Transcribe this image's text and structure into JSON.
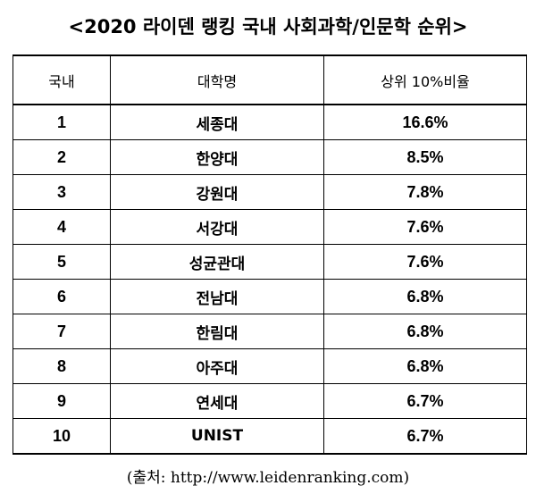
{
  "title": "<2020 라이덴 랭킹 국내 사회과학/인문학 순위>",
  "table": {
    "headers": [
      "국내",
      "대학명",
      "상위 10%비율"
    ],
    "rows": [
      {
        "rank": "1",
        "name": "세종대",
        "ratio": "16.6%"
      },
      {
        "rank": "2",
        "name": "한양대",
        "ratio": "8.5%"
      },
      {
        "rank": "3",
        "name": "강원대",
        "ratio": "7.8%"
      },
      {
        "rank": "4",
        "name": "서강대",
        "ratio": "7.6%"
      },
      {
        "rank": "5",
        "name": "성균관대",
        "ratio": "7.6%"
      },
      {
        "rank": "6",
        "name": "전남대",
        "ratio": "6.8%"
      },
      {
        "rank": "7",
        "name": "한림대",
        "ratio": "6.8%"
      },
      {
        "rank": "8",
        "name": "아주대",
        "ratio": "6.8%"
      },
      {
        "rank": "9",
        "name": "연세대",
        "ratio": "6.7%"
      },
      {
        "rank": "10",
        "name": "UNIST",
        "ratio": "6.7%"
      }
    ]
  },
  "source": "(출처: http://www.leidenranking.com)"
}
